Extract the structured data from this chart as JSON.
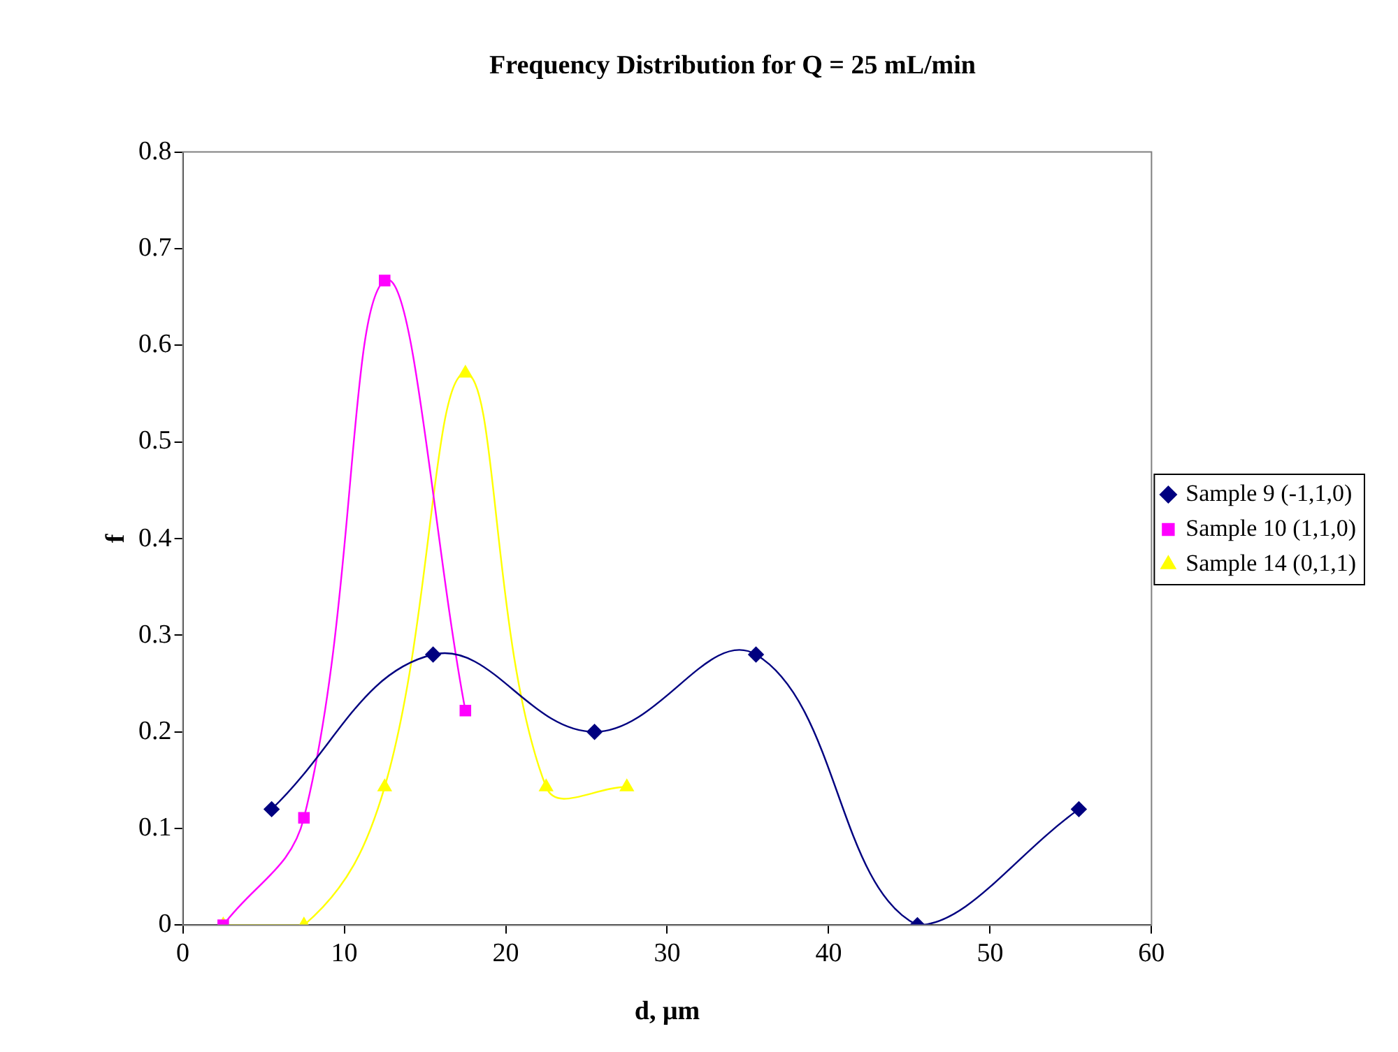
{
  "chart_data": {
    "type": "line",
    "title": "Frequency Distribution for Q = 25 mL/min",
    "xlabel": "d, μm",
    "ylabel": "f",
    "xlim": [
      0,
      60
    ],
    "xticks": [
      0,
      10,
      20,
      30,
      40,
      50,
      60
    ],
    "ylim": [
      0,
      0.8
    ],
    "yticks": [
      0,
      0.1,
      0.2,
      0.3,
      0.4,
      0.5,
      0.6,
      0.7,
      0.8
    ],
    "grid": false,
    "legend": "right",
    "series": [
      {
        "name": "Sample 9 (-1,1,0)",
        "color": "#000080",
        "marker": "diamond",
        "x": [
          5.5,
          15.5,
          25.5,
          35.5,
          45.5,
          55.5
        ],
        "values": [
          0.12,
          0.28,
          0.2,
          0.28,
          0,
          0.12
        ]
      },
      {
        "name": "Sample 10 (1,1,0)",
        "color": "#ff00ff",
        "marker": "square",
        "x": [
          2.5,
          7.5,
          12.5,
          17.5
        ],
        "values": [
          0,
          0.111,
          0.667,
          0.222
        ]
      },
      {
        "name": "Sample 14 (0,1,1)",
        "color": "#ffff00",
        "marker": "triangle",
        "x": [
          2.5,
          7.5,
          12.5,
          17.5,
          22.5,
          27.5
        ],
        "values": [
          0,
          0,
          0.143,
          0.571,
          0.143,
          0.143
        ]
      }
    ]
  }
}
